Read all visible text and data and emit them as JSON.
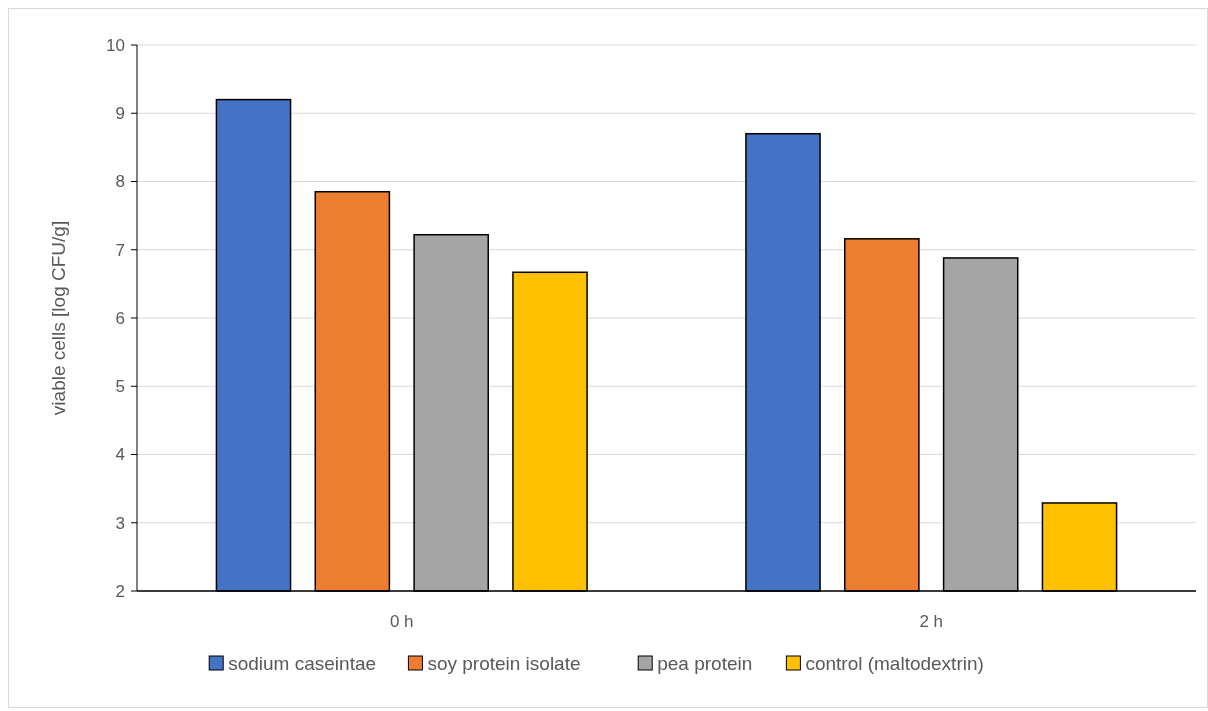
{
  "chart_data": {
    "type": "bar",
    "ylabel": "viable cells  [log CFU/g]",
    "categories": [
      "0 h",
      "2 h"
    ],
    "series": [
      {
        "name": "sodium caseintae",
        "color": "#4472c4",
        "values": [
          9.2,
          8.7
        ]
      },
      {
        "name": "soy protein isolate",
        "color": "#ed7d31",
        "values": [
          7.85,
          7.16
        ]
      },
      {
        "name": "pea protein",
        "color": "#a5a5a5",
        "values": [
          7.22,
          6.88
        ]
      },
      {
        "name": "control (maltodextrin)",
        "color": "#ffc000",
        "values": [
          6.67,
          3.29
        ]
      }
    ],
    "ylim": [
      2,
      10
    ],
    "yticks": [
      2,
      3,
      4,
      5,
      6,
      7,
      8,
      9,
      10
    ],
    "grid": "y",
    "legend": "bottom"
  }
}
